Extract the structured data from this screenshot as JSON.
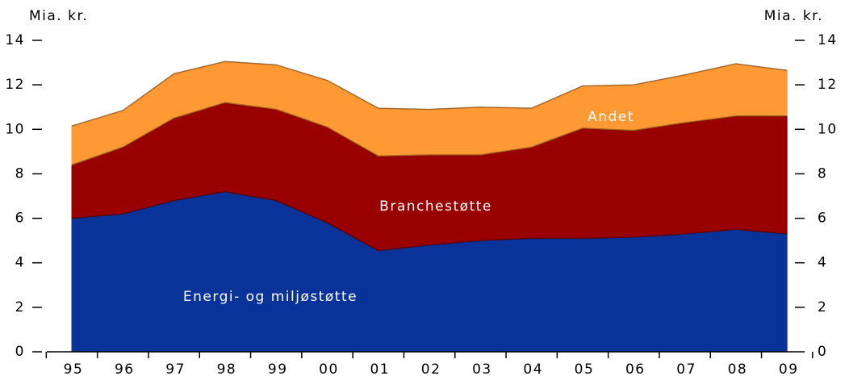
{
  "chart_data": {
    "type": "stacked_area",
    "y_label": "Mia. kr.",
    "y2_label": "Mia. kr.",
    "categories": [
      "95",
      "96",
      "97",
      "98",
      "99",
      "00",
      "01",
      "02",
      "03",
      "04",
      "05",
      "06",
      "07",
      "08",
      "09"
    ],
    "series": [
      {
        "name": "Energi- og miljøstøtte",
        "color": "#0a3399",
        "values": [
          6.0,
          6.2,
          6.8,
          7.2,
          6.8,
          5.8,
          4.55,
          4.8,
          5.0,
          5.1,
          5.1,
          5.15,
          5.3,
          5.5,
          5.3
        ]
      },
      {
        "name": "Branchestøtte",
        "color": "#990000",
        "values": [
          2.4,
          3.0,
          3.7,
          4.0,
          4.1,
          4.3,
          4.25,
          4.05,
          3.85,
          4.1,
          4.95,
          4.8,
          5.0,
          5.1,
          5.3
        ]
      },
      {
        "name": "Andet",
        "color": "#ff9933",
        "values": [
          1.75,
          1.65,
          2.0,
          1.85,
          2.0,
          2.1,
          2.15,
          2.05,
          2.15,
          1.75,
          1.9,
          2.05,
          2.15,
          2.35,
          2.05
        ]
      }
    ],
    "ylim": [
      0,
      14
    ],
    "yticks": [
      0,
      2,
      4,
      6,
      8,
      10,
      12,
      14
    ],
    "y2lim": [
      0,
      14
    ],
    "y2ticks": [
      0,
      2,
      4,
      6,
      8,
      10,
      12,
      14
    ]
  }
}
